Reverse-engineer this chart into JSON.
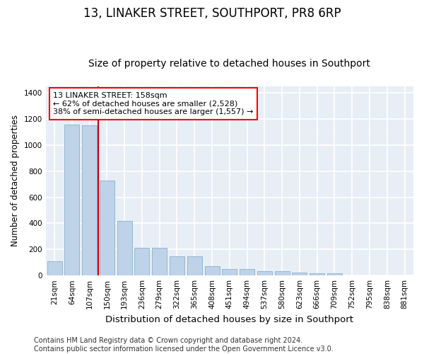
{
  "title": "13, LINAKER STREET, SOUTHPORT, PR8 6RP",
  "subtitle": "Size of property relative to detached houses in Southport",
  "xlabel": "Distribution of detached houses by size in Southport",
  "ylabel": "Number of detached properties",
  "footer_line1": "Contains HM Land Registry data © Crown copyright and database right 2024.",
  "footer_line2": "Contains public sector information licensed under the Open Government Licence v3.0.",
  "categories": [
    "21sqm",
    "64sqm",
    "107sqm",
    "150sqm",
    "193sqm",
    "236sqm",
    "279sqm",
    "322sqm",
    "365sqm",
    "408sqm",
    "451sqm",
    "494sqm",
    "537sqm",
    "580sqm",
    "623sqm",
    "666sqm",
    "709sqm",
    "752sqm",
    "795sqm",
    "838sqm",
    "881sqm"
  ],
  "values": [
    110,
    1155,
    1150,
    730,
    420,
    215,
    210,
    150,
    150,
    72,
    50,
    50,
    33,
    33,
    20,
    15,
    15,
    0,
    0,
    0,
    0
  ],
  "bar_color": "#bed3e8",
  "bar_edge_color": "#8ab0cc",
  "bg_color": "#e8eef5",
  "grid_color": "#ffffff",
  "vline_color": "#cc0000",
  "vline_x": 3,
  "annotation_title": "13 LINAKER STREET: 158sqm",
  "annotation_line1": "← 62% of detached houses are smaller (2,528)",
  "annotation_line2": "38% of semi-detached houses are larger (1,557) →",
  "ylim": [
    0,
    1450
  ],
  "title_fontsize": 12,
  "subtitle_fontsize": 10,
  "ylabel_fontsize": 8.5,
  "xlabel_fontsize": 9.5,
  "tick_fontsize": 7.5,
  "annotation_fontsize": 8,
  "footer_fontsize": 7
}
